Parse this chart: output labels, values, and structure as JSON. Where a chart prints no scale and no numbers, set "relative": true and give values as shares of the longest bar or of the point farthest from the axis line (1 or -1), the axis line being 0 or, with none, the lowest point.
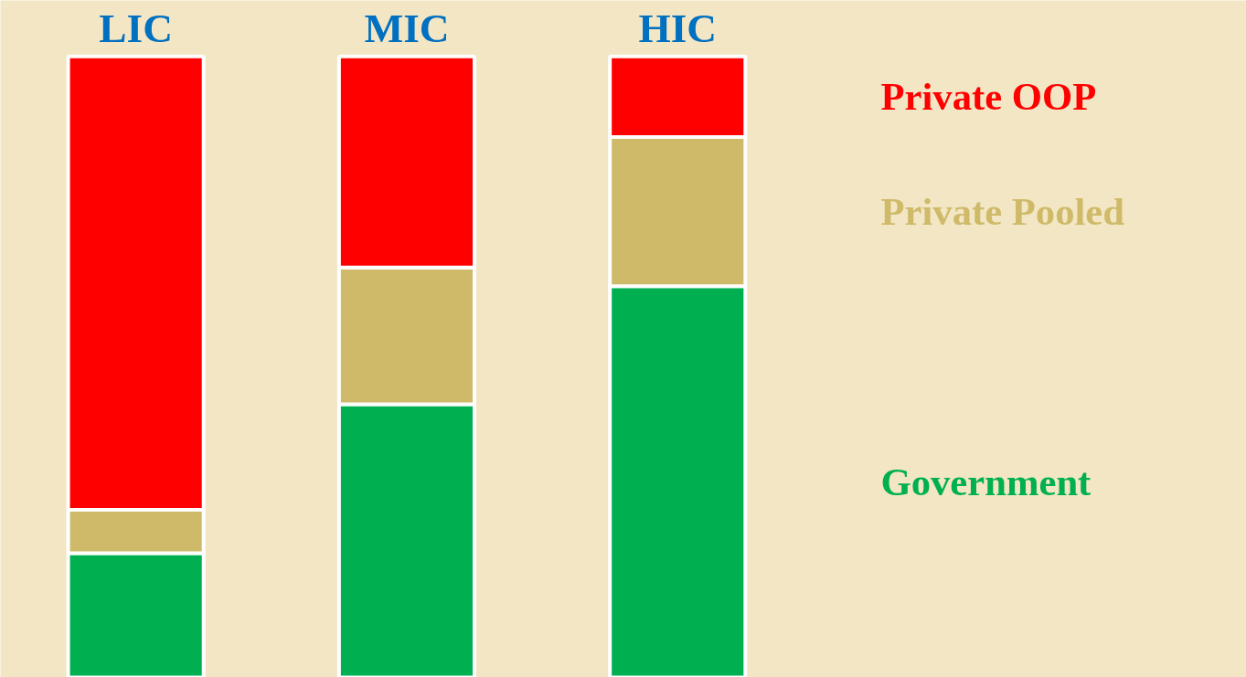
{
  "chart_data": {
    "type": "bar",
    "stacked": true,
    "relative": true,
    "legend": "right",
    "tick_labels": "x",
    "categories": [
      "LIC",
      "MIC",
      "HIC"
    ],
    "series": [
      {
        "name": "Government",
        "color": "#00b050",
        "values": [
          0.2,
          0.44,
          0.63
        ]
      },
      {
        "name": "Private Pooled",
        "color": "#cfba69",
        "values": [
          0.07,
          0.22,
          0.24
        ]
      },
      {
        "name": "Private OOP",
        "color": "#ff0000",
        "values": [
          0.73,
          0.34,
          0.13
        ]
      }
    ]
  }
}
